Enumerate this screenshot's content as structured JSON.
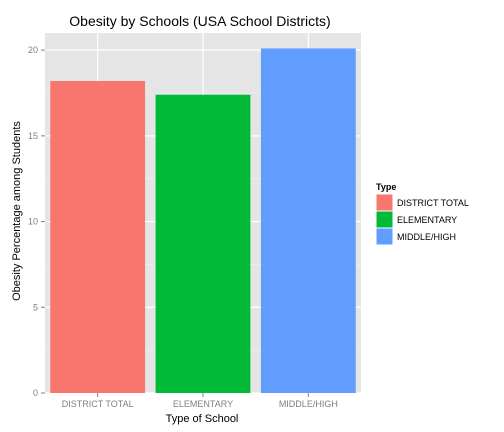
{
  "chart_data": {
    "type": "bar",
    "title": "Obesity by Schools (USA School Districts)",
    "xlabel": "Type of School",
    "ylabel": "Obesity Percentage among Students",
    "categories": [
      "DISTRICT TOTAL",
      "ELEMENTARY",
      "MIDDLE/HIGH"
    ],
    "values": [
      18.2,
      17.4,
      20.1
    ],
    "colors": [
      "#f8766d",
      "#00ba38",
      "#619cff"
    ],
    "ylim": [
      0,
      21
    ],
    "yticks": [
      0,
      5,
      10,
      15,
      20
    ],
    "grid": true,
    "panel_background": "#e5e5e5",
    "legend": {
      "title": "Type",
      "placement": "right",
      "entries": [
        "DISTRICT TOTAL",
        "ELEMENTARY",
        "MIDDLE/HIGH"
      ]
    }
  }
}
